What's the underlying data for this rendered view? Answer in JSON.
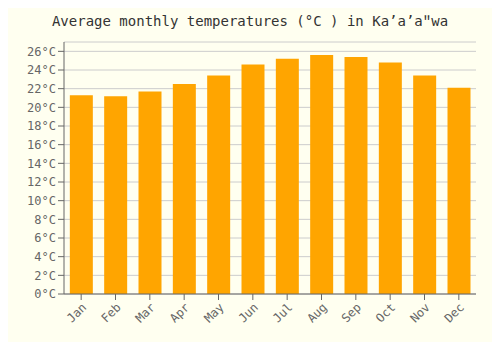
{
  "chart_data": {
    "type": "bar",
    "title": "Average monthly temperatures (°C ) in Kaʼaʼaʺwa",
    "categories": [
      "Jan",
      "Feb",
      "Mar",
      "Apr",
      "May",
      "Jun",
      "Jul",
      "Aug",
      "Sep",
      "Oct",
      "Nov",
      "Dec"
    ],
    "values": [
      21.3,
      21.2,
      21.7,
      22.5,
      23.4,
      24.6,
      25.2,
      25.6,
      25.4,
      24.8,
      23.4,
      22.1
    ],
    "color": "#FFA500",
    "ylim": [
      0,
      27
    ],
    "yticks": [
      {
        "value": 0,
        "label": "0°C"
      },
      {
        "value": 2,
        "label": "2°C"
      },
      {
        "value": 4,
        "label": "4°C"
      },
      {
        "value": 6,
        "label": "6°C"
      },
      {
        "value": 8,
        "label": "8°C"
      },
      {
        "value": 10,
        "label": "10°C"
      },
      {
        "value": 12,
        "label": "12°C"
      },
      {
        "value": 14,
        "label": "14°C"
      },
      {
        "value": 16,
        "label": "16°C"
      },
      {
        "value": 18,
        "label": "18°C"
      },
      {
        "value": 20,
        "label": "20°C"
      },
      {
        "value": 22,
        "label": "22°C"
      },
      {
        "value": 24,
        "label": "24°C"
      },
      {
        "value": 26,
        "label": "26°C"
      }
    ],
    "grid": true
  }
}
